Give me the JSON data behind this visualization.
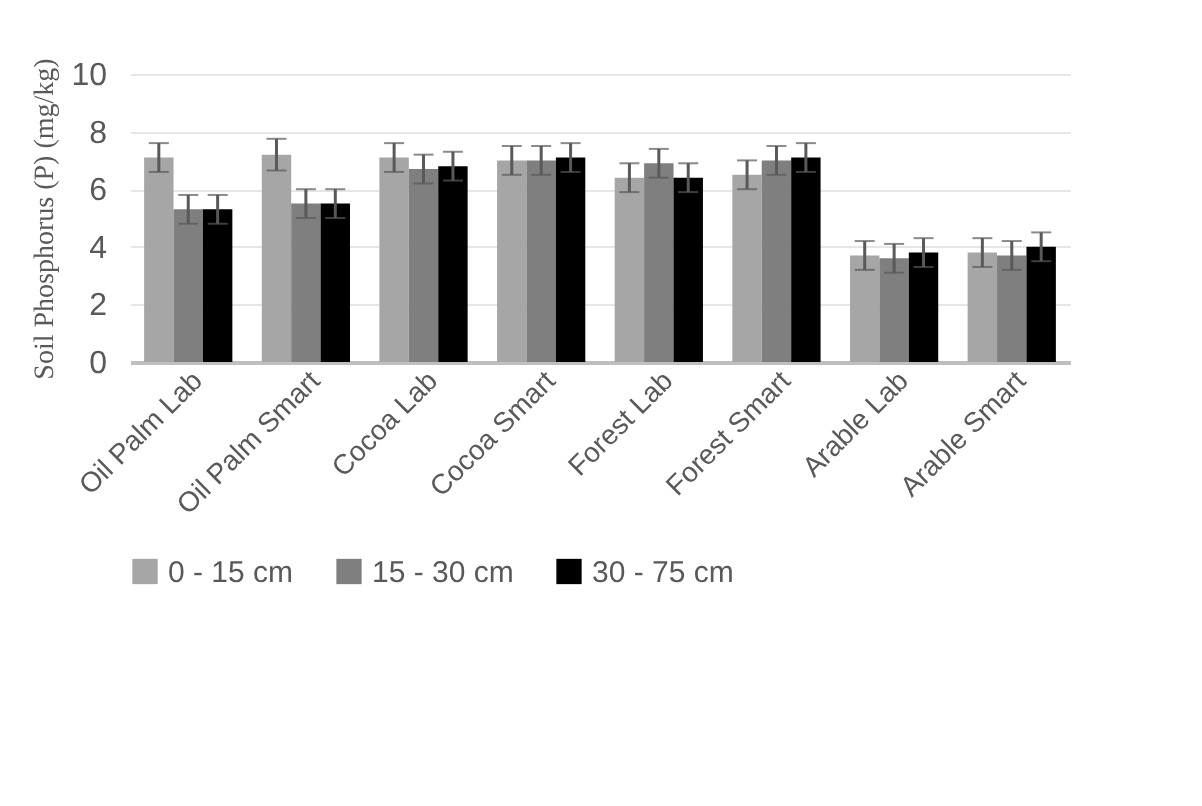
{
  "chart_data": {
    "type": "bar",
    "ylabel": "Soil Phosphorus  (P) (mg/kg)",
    "categories": [
      "Oil Palm Lab",
      "Oil Palm Smart",
      "Cocoa Lab",
      "Cocoa Smart",
      "Forest Lab",
      "Forest Smart",
      "Arable Lab",
      "Arable Smart"
    ],
    "series": [
      {
        "name": "0 - 15 cm",
        "color": "#a6a6a6",
        "values": [
          7.1,
          7.2,
          7.1,
          7.0,
          6.4,
          6.5,
          3.7,
          3.8
        ],
        "errors": [
          0.5,
          0.55,
          0.5,
          0.5,
          0.5,
          0.5,
          0.5,
          0.5
        ]
      },
      {
        "name": "15 - 30 cm",
        "color": "#7f7f7f",
        "values": [
          5.3,
          5.5,
          6.7,
          7.0,
          6.9,
          7.0,
          3.6,
          3.7
        ],
        "errors": [
          0.5,
          0.5,
          0.5,
          0.5,
          0.5,
          0.5,
          0.5,
          0.5
        ]
      },
      {
        "name": "30 - 75 cm",
        "color": "#000000",
        "values": [
          5.3,
          5.5,
          6.8,
          7.1,
          6.4,
          7.1,
          3.8,
          4.0
        ],
        "errors": [
          0.5,
          0.5,
          0.5,
          0.5,
          0.5,
          0.5,
          0.5,
          0.5
        ]
      }
    ],
    "ylim": [
      0,
      10
    ],
    "yticks": [
      0,
      2,
      4,
      6,
      8,
      10
    ],
    "grid": "y",
    "legend": "bottom"
  }
}
